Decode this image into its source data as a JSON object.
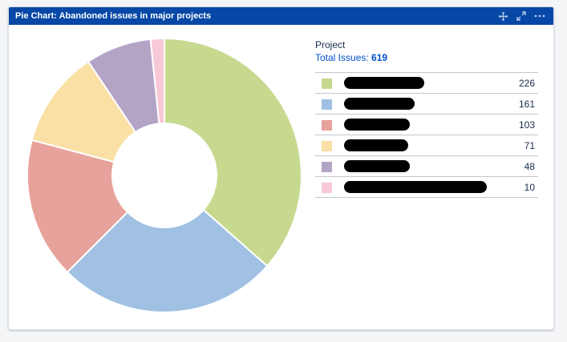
{
  "gadget": {
    "title": "Pie Chart: Abandoned issues in major projects",
    "controls": [
      "move-icon",
      "expand-icon",
      "more-icon"
    ]
  },
  "legend": {
    "heading": "Project",
    "total_label": "Total Issues:",
    "total_value": "619",
    "rows": [
      {
        "color": "#c7d98f",
        "count": "226"
      },
      {
        "color": "#a0c1e3",
        "count": "161"
      },
      {
        "color": "#e8a29c",
        "count": "103"
      },
      {
        "color": "#fae0a4",
        "count": "71"
      },
      {
        "color": "#b3a4c6",
        "count": "48"
      },
      {
        "color": "#f8c8d6",
        "count": "10"
      }
    ]
  },
  "chart_data": {
    "type": "pie",
    "donut": true,
    "title": "",
    "values": [
      226,
      161,
      103,
      71,
      48,
      10
    ],
    "colors": [
      "#c7d98f",
      "#a0c1e3",
      "#e8a29c",
      "#fae0a4",
      "#b3a4c6",
      "#f8c8d6"
    ],
    "total": 619
  }
}
